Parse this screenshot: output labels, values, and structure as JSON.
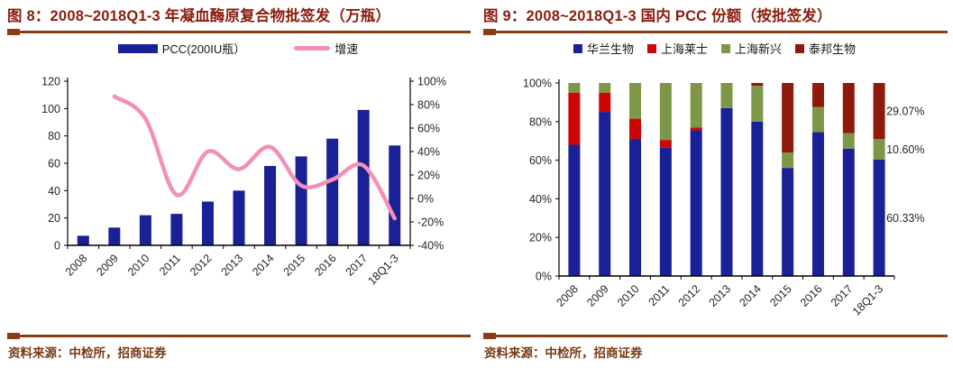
{
  "colors": {
    "title": "#8c1c0e",
    "rule": "#8a3c14",
    "source_text": "#7a3812",
    "axis_text": "#262626",
    "axis_line": "#000000",
    "navy": "#1a2096",
    "pink": "#f48fb8",
    "red": "#cc0606",
    "olive": "#7e9747",
    "dark_red": "#8e1a0c"
  },
  "figures": [
    {
      "title": "图 8：2008~2018Q1-3 年凝血酶原复合物批签发（万瓶）",
      "source": "资料来源：中检所，招商证券"
    },
    {
      "title": "图 9：2008~2018Q1-3 国内 PCC 份额（按批签发）",
      "source": "资料来源：中检所，招商证券"
    }
  ],
  "chart_data": [
    {
      "type": "bar",
      "subtype": "bar-with-line",
      "title": "图 8：2008~2018Q1-3 年凝血酶原复合物批签发（万瓶）",
      "categories": [
        "2008",
        "2009",
        "2010",
        "2011",
        "2012",
        "2013",
        "2014",
        "2015",
        "2016",
        "2017",
        "18Q1-3"
      ],
      "series": [
        {
          "name": "PCC(200IU瓶）",
          "kind": "bar",
          "axis": "left",
          "swatch": "bar",
          "color": "#1a2096",
          "values": [
            7,
            13,
            22,
            23,
            32,
            40,
            58,
            65,
            78,
            99,
            73
          ]
        },
        {
          "name": "增速",
          "kind": "line",
          "axis": "right",
          "swatch": "line",
          "color": "#f48fb8",
          "values": [
            null,
            87,
            68,
            3,
            40,
            25,
            44,
            11,
            16,
            28,
            -17
          ]
        }
      ],
      "left_axis": {
        "min": 0,
        "max": 120,
        "step": 20,
        "suffix": "",
        "ticks": [
          "0",
          "20",
          "40",
          "60",
          "80",
          "100",
          "120"
        ]
      },
      "right_axis": {
        "min": -40,
        "max": 100,
        "step": 20,
        "suffix": "%",
        "ticks": [
          "-40%",
          "-20%",
          "0%",
          "20%",
          "40%",
          "60%",
          "80%",
          "100%"
        ]
      },
      "legend_position": "top",
      "grid": false
    },
    {
      "type": "bar",
      "subtype": "stacked-percent",
      "title": "图 9：2008~2018Q1-3 国内 PCC 份额（按批签发）",
      "categories": [
        "2008",
        "2009",
        "2010",
        "2011",
        "2012",
        "2013",
        "2014",
        "2015",
        "2016",
        "2017",
        "18Q1-3"
      ],
      "series": [
        {
          "name": "华兰生物",
          "swatch": "square",
          "color": "#1a2096",
          "values": [
            68,
            85,
            71,
            66.5,
            75.5,
            87,
            80,
            56,
            74.5,
            66,
            60.33
          ]
        },
        {
          "name": "上海莱士",
          "swatch": "square",
          "color": "#cc0606",
          "values": [
            27,
            10,
            10.5,
            4,
            1.5,
            0,
            0,
            0,
            0,
            0,
            0
          ]
        },
        {
          "name": "上海新兴",
          "swatch": "square",
          "color": "#7e9747",
          "values": [
            5,
            5,
            18.5,
            29.5,
            23,
            13,
            18.5,
            8,
            13,
            8,
            10.6
          ]
        },
        {
          "name": "泰邦生物",
          "swatch": "square",
          "color": "#8e1a0c",
          "values": [
            0,
            0,
            0,
            0,
            0,
            0,
            1.5,
            36,
            12.5,
            26,
            29.07
          ]
        }
      ],
      "left_axis": {
        "min": 0,
        "max": 100,
        "step": 20,
        "suffix": "%",
        "ticks": [
          "0%",
          "20%",
          "40%",
          "60%",
          "80%",
          "100%"
        ]
      },
      "last_bar_labels": [
        {
          "text": "29.07%",
          "series": "泰邦生物"
        },
        {
          "text": "10.60%",
          "series": "上海新兴"
        },
        {
          "text": "60.33%",
          "series": "华兰生物"
        }
      ],
      "legend_position": "top",
      "grid": false
    }
  ]
}
